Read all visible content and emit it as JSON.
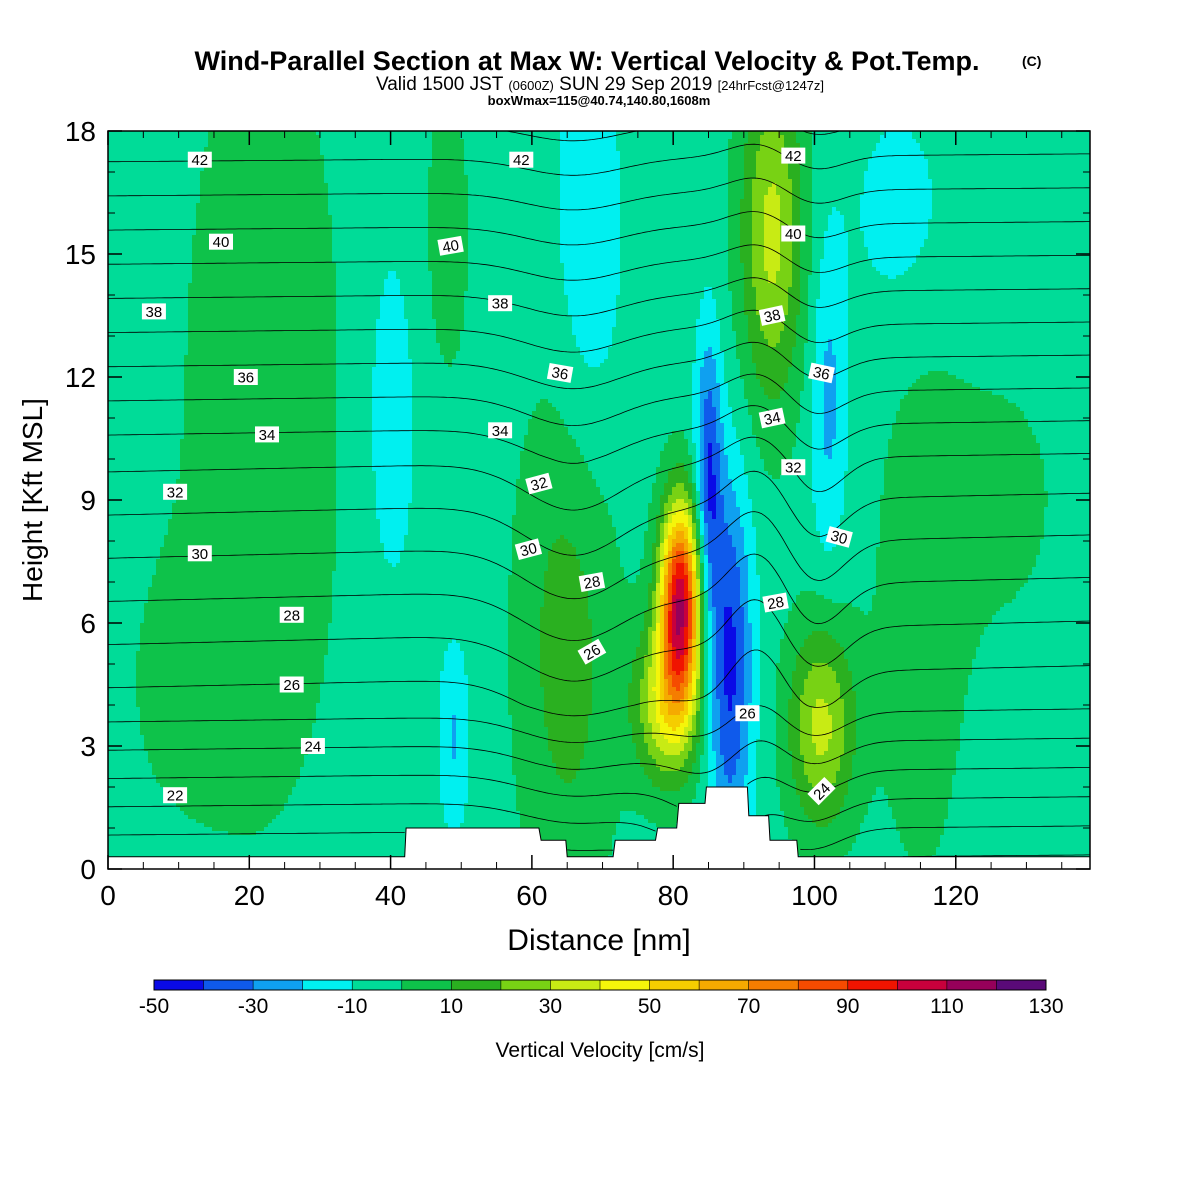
{
  "title": {
    "main": "Wind-Parallel Section at Max W: Vertical Velocity & Pot.Temp.",
    "copyright": "(C)",
    "valid_prefix": "Valid 1500 JST",
    "utc": "(0600Z)",
    "valid_date": "SUN 29 Sep 2019",
    "forecast": "[24hrFcst@1247z]",
    "boxinfo": "boxWmax=115@40.74,140.80,1608m"
  },
  "colorbar": {
    "label": "Vertical Velocity [cm/s]",
    "tick_labels": [
      "-50",
      "-30",
      "-10",
      "10",
      "30",
      "50",
      "70",
      "90",
      "110",
      "130"
    ],
    "colors": [
      "#0a0ae6",
      "#0f5aeb",
      "#0fa0f0",
      "#00f0f0",
      "#00dc98",
      "#0ec24a",
      "#2ab020",
      "#78d214",
      "#c8eb14",
      "#f5f50a",
      "#f5cd00",
      "#f5aa00",
      "#f57d00",
      "#f54b00",
      "#f01400",
      "#c8003c",
      "#96005a",
      "#5a0a78"
    ]
  },
  "chart_data": {
    "type": "heatmap",
    "title": "Wind-Parallel Section at Max W: Vertical Velocity & Pot.Temp.",
    "xlabel": "Distance [nm]",
    "ylabel": "Height [Kft MSL]",
    "xlim": [
      0,
      139
    ],
    "ylim": [
      0,
      18
    ],
    "x_ticks": [
      0,
      20,
      40,
      60,
      80,
      100,
      120
    ],
    "y_ticks": [
      0,
      3,
      6,
      9,
      12,
      15,
      18
    ],
    "fill_variable": "Vertical Velocity [cm/s]",
    "fill_levels": [
      -50,
      -40,
      -30,
      -20,
      -10,
      0,
      10,
      20,
      30,
      40,
      50,
      60,
      70,
      80,
      90,
      100,
      110,
      120,
      130
    ],
    "background_value": -5,
    "features": [
      {
        "x": 81,
        "y": 6.5,
        "sx": 2.0,
        "sy": 1.7,
        "amp": 110
      },
      {
        "x": 79,
        "y": 4.0,
        "sx": 3.2,
        "sy": 1.4,
        "amp": 42
      },
      {
        "x": 88,
        "y": 5.0,
        "sx": 2.2,
        "sy": 3.2,
        "amp": -38
      },
      {
        "x": 85,
        "y": 9.6,
        "sx": 1.3,
        "sy": 2.4,
        "amp": -34
      },
      {
        "x": 101,
        "y": 3.5,
        "sx": 3.4,
        "sy": 1.8,
        "amp": 38
      },
      {
        "x": 94,
        "y": 15.5,
        "sx": 3.2,
        "sy": 3.0,
        "amp": 38
      },
      {
        "x": 65,
        "y": 5.5,
        "sx": 5.0,
        "sy": 4.5,
        "amp": 20
      },
      {
        "x": 102,
        "y": 11.5,
        "sx": 1.8,
        "sy": 2.8,
        "amp": -18
      },
      {
        "x": 49,
        "y": 3.2,
        "sx": 1.5,
        "sy": 1.6,
        "amp": -16
      },
      {
        "x": 22,
        "y": 11.0,
        "sx": 8.0,
        "sy": 7.0,
        "amp": 13
      },
      {
        "x": 10,
        "y": 4.5,
        "sx": 6.0,
        "sy": 2.5,
        "amp": 7
      },
      {
        "x": 115,
        "y": 6.0,
        "sx": 4.5,
        "sy": 4.5,
        "amp": 12
      },
      {
        "x": 126,
        "y": 9.0,
        "sx": 7.0,
        "sy": 2.5,
        "amp": 8
      },
      {
        "x": 48,
        "y": 15.5,
        "sx": 2.5,
        "sy": 2.8,
        "amp": 10
      },
      {
        "x": 68,
        "y": 15.0,
        "sx": 3.5,
        "sy": 4.0,
        "amp": -13
      },
      {
        "x": 40,
        "y": 11.0,
        "sx": 3.0,
        "sy": 3.5,
        "amp": -10
      },
      {
        "x": 112,
        "y": 16.0,
        "sx": 5.0,
        "sy": 2.0,
        "amp": -9
      }
    ],
    "terrain": [
      [
        0,
        0.3
      ],
      [
        41.5,
        0.3
      ],
      [
        42,
        0.3
      ],
      [
        42.2,
        1.0
      ],
      [
        61,
        1.0
      ],
      [
        61.3,
        0.7
      ],
      [
        64.8,
        0.7
      ],
      [
        65,
        0.3
      ],
      [
        71.5,
        0.3
      ],
      [
        71.8,
        0.7
      ],
      [
        77.5,
        0.7
      ],
      [
        77.8,
        1.0
      ],
      [
        80.5,
        1.0
      ],
      [
        80.8,
        1.6
      ],
      [
        84.5,
        1.6
      ],
      [
        84.7,
        2.0
      ],
      [
        90.5,
        2.0
      ],
      [
        90.7,
        1.3
      ],
      [
        93.5,
        1.3
      ],
      [
        93.7,
        0.7
      ],
      [
        97.5,
        0.7
      ],
      [
        97.7,
        0.3
      ],
      [
        139,
        0.3
      ]
    ],
    "theta_contours": {
      "levels": [
        20,
        21,
        22,
        23,
        24,
        25,
        26,
        27,
        28,
        29,
        30,
        31,
        32,
        33,
        34,
        35,
        36,
        37,
        38,
        39,
        40,
        41,
        42,
        43
      ],
      "labeled": [
        {
          "label": "42",
          "x": 13,
          "y": 17.3,
          "rot": 0
        },
        {
          "label": "42",
          "x": 58.5,
          "y": 17.3,
          "rot": 0
        },
        {
          "label": "42",
          "x": 97,
          "y": 17.4,
          "rot": 0
        },
        {
          "label": "40",
          "x": 16,
          "y": 15.3,
          "rot": 0
        },
        {
          "label": "40",
          "x": 48.5,
          "y": 15.2,
          "rot": -10
        },
        {
          "label": "40",
          "x": 97,
          "y": 15.5,
          "rot": 0
        },
        {
          "label": "38",
          "x": 6.5,
          "y": 13.6,
          "rot": 0
        },
        {
          "label": "38",
          "x": 55.5,
          "y": 13.8,
          "rot": 0
        },
        {
          "label": "38",
          "x": 94,
          "y": 13.5,
          "rot": -12
        },
        {
          "label": "36",
          "x": 19.5,
          "y": 12.0,
          "rot": 0
        },
        {
          "label": "36",
          "x": 64,
          "y": 12.1,
          "rot": 10
        },
        {
          "label": "36",
          "x": 101,
          "y": 12.1,
          "rot": 12
        },
        {
          "label": "34",
          "x": 22.5,
          "y": 10.6,
          "rot": 0
        },
        {
          "label": "34",
          "x": 55.5,
          "y": 10.7,
          "rot": 0
        },
        {
          "label": "34",
          "x": 94,
          "y": 11.0,
          "rot": -12
        },
        {
          "label": "32",
          "x": 9.5,
          "y": 9.2,
          "rot": 0
        },
        {
          "label": "32",
          "x": 61,
          "y": 9.4,
          "rot": -15
        },
        {
          "label": "32",
          "x": 97,
          "y": 9.8,
          "rot": 0
        },
        {
          "label": "30",
          "x": 13,
          "y": 7.7,
          "rot": 0
        },
        {
          "label": "30",
          "x": 59.5,
          "y": 7.8,
          "rot": -15
        },
        {
          "label": "30",
          "x": 103.5,
          "y": 8.1,
          "rot": 15
        },
        {
          "label": "28",
          "x": 26,
          "y": 6.2,
          "rot": 0
        },
        {
          "label": "28",
          "x": 68.5,
          "y": 7.0,
          "rot": -10
        },
        {
          "label": "28",
          "x": 94.5,
          "y": 6.5,
          "rot": -10
        },
        {
          "label": "26",
          "x": 26,
          "y": 4.5,
          "rot": 0
        },
        {
          "label": "26",
          "x": 68.5,
          "y": 5.3,
          "rot": -30
        },
        {
          "label": "26",
          "x": 90.5,
          "y": 3.8,
          "rot": 0
        },
        {
          "label": "24",
          "x": 29,
          "y": 3.0,
          "rot": 0
        },
        {
          "label": "24",
          "x": 101,
          "y": 1.9,
          "rot": -45
        },
        {
          "label": "22",
          "x": 9.5,
          "y": 1.8,
          "rot": 0
        }
      ]
    }
  }
}
